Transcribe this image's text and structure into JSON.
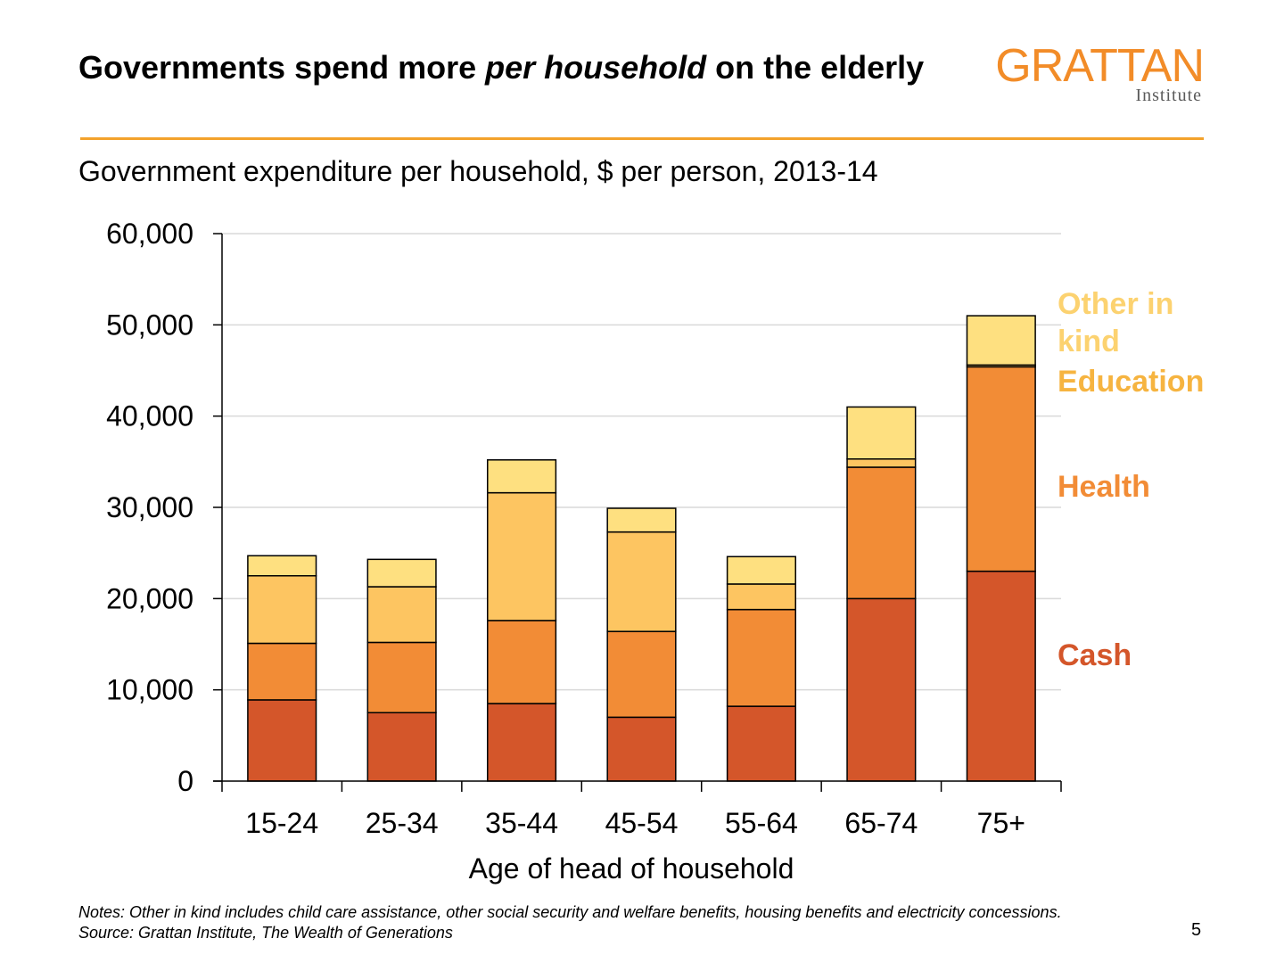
{
  "slide": {
    "title_part1": "Governments spend more ",
    "title_emph": "per household",
    "title_part2": " on the elderly",
    "subtitle": "Government expenditure per household, $ per person, 2013-14",
    "logo_main": "GRATTAN",
    "logo_sub": "Institute",
    "notes": "Notes: Other in kind includes child care assistance, other social security and welfare benefits, housing benefits and electricity concessions.",
    "source": "Source: Grattan Institute, The Wealth of Generations",
    "page_number": "5",
    "accent_color": "#f3a22c"
  },
  "chart_data": {
    "type": "bar",
    "stacked": true,
    "title": "",
    "xlabel": "Age of head of household",
    "ylabel": "",
    "categories": [
      "15-24",
      "25-34",
      "35-44",
      "45-54",
      "55-64",
      "65-74",
      "75+"
    ],
    "ylim": [
      0,
      60000
    ],
    "yticks": [
      0,
      10000,
      20000,
      30000,
      40000,
      50000,
      60000
    ],
    "ytick_labels": [
      "0",
      "10,000",
      "20,000",
      "30,000",
      "40,000",
      "50,000",
      "60,000"
    ],
    "grid": true,
    "series": [
      {
        "name": "Cash",
        "color": "#d4562a",
        "values": [
          8900,
          7500,
          8500,
          7000,
          8200,
          20000,
          23000
        ]
      },
      {
        "name": "Health",
        "color": "#f28c36",
        "values": [
          6200,
          7700,
          9100,
          9400,
          10600,
          14400,
          22400
        ]
      },
      {
        "name": "Education",
        "color": "#fdc561",
        "values": [
          7400,
          6100,
          14000,
          10900,
          2800,
          900,
          200
        ]
      },
      {
        "name": "Other in kind",
        "color": "#fee080",
        "values": [
          2200,
          3000,
          3600,
          2600,
          3000,
          5700,
          5400
        ]
      }
    ],
    "legend_labels": [
      {
        "text": "Other in kind",
        "color": "#fcd270"
      },
      {
        "text": "Education",
        "color": "#f6b440"
      },
      {
        "text": "Health",
        "color": "#f28c36"
      },
      {
        "text": "Cash",
        "color": "#d4562a"
      }
    ],
    "legend_placement": "right"
  }
}
